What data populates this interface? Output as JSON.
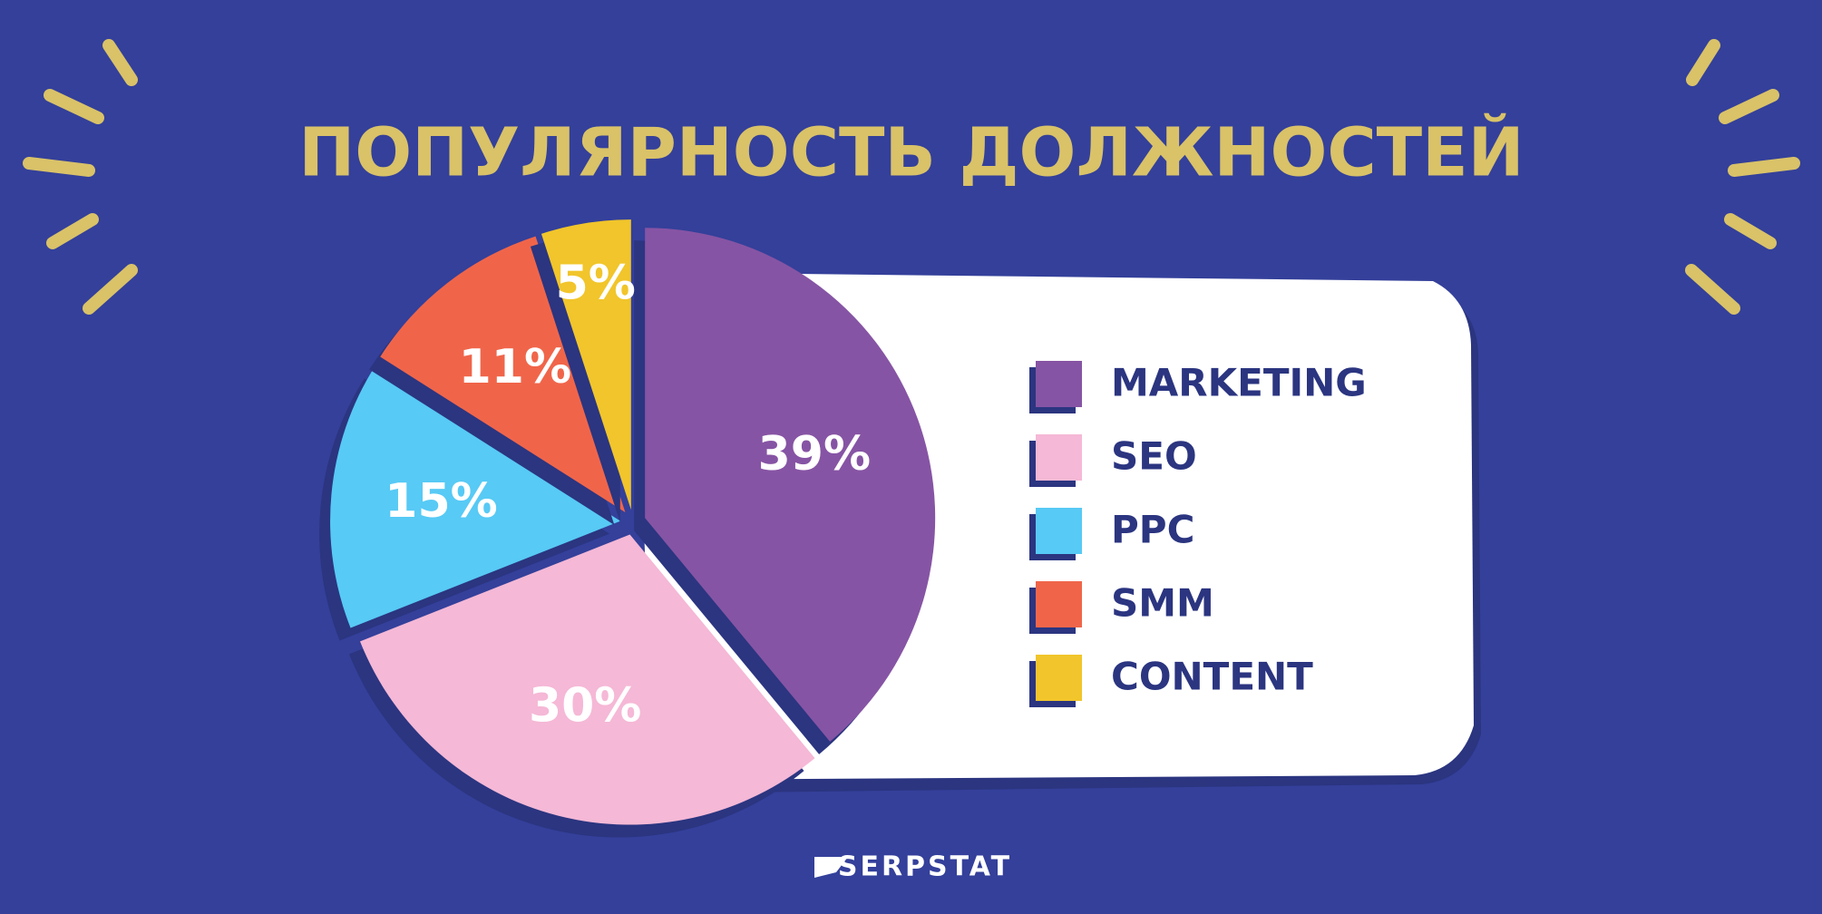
{
  "chart_data": {
    "type": "pie",
    "title": "ПОПУЛЯРНОСТЬ ДОЛЖНОСТЕЙ",
    "categories": [
      "MARKETING",
      "SEO",
      "PPC",
      "SMM",
      "CONTENT"
    ],
    "values": [
      39,
      30,
      15,
      11,
      5
    ],
    "value_labels": [
      "39%",
      "30%",
      "15%",
      "11%",
      "5%"
    ],
    "colors": [
      "#8654a4",
      "#f5b8d6",
      "#57caf5",
      "#f0654a",
      "#f1c52b"
    ],
    "legend": "right",
    "brand": "SERPSTAT"
  }
}
